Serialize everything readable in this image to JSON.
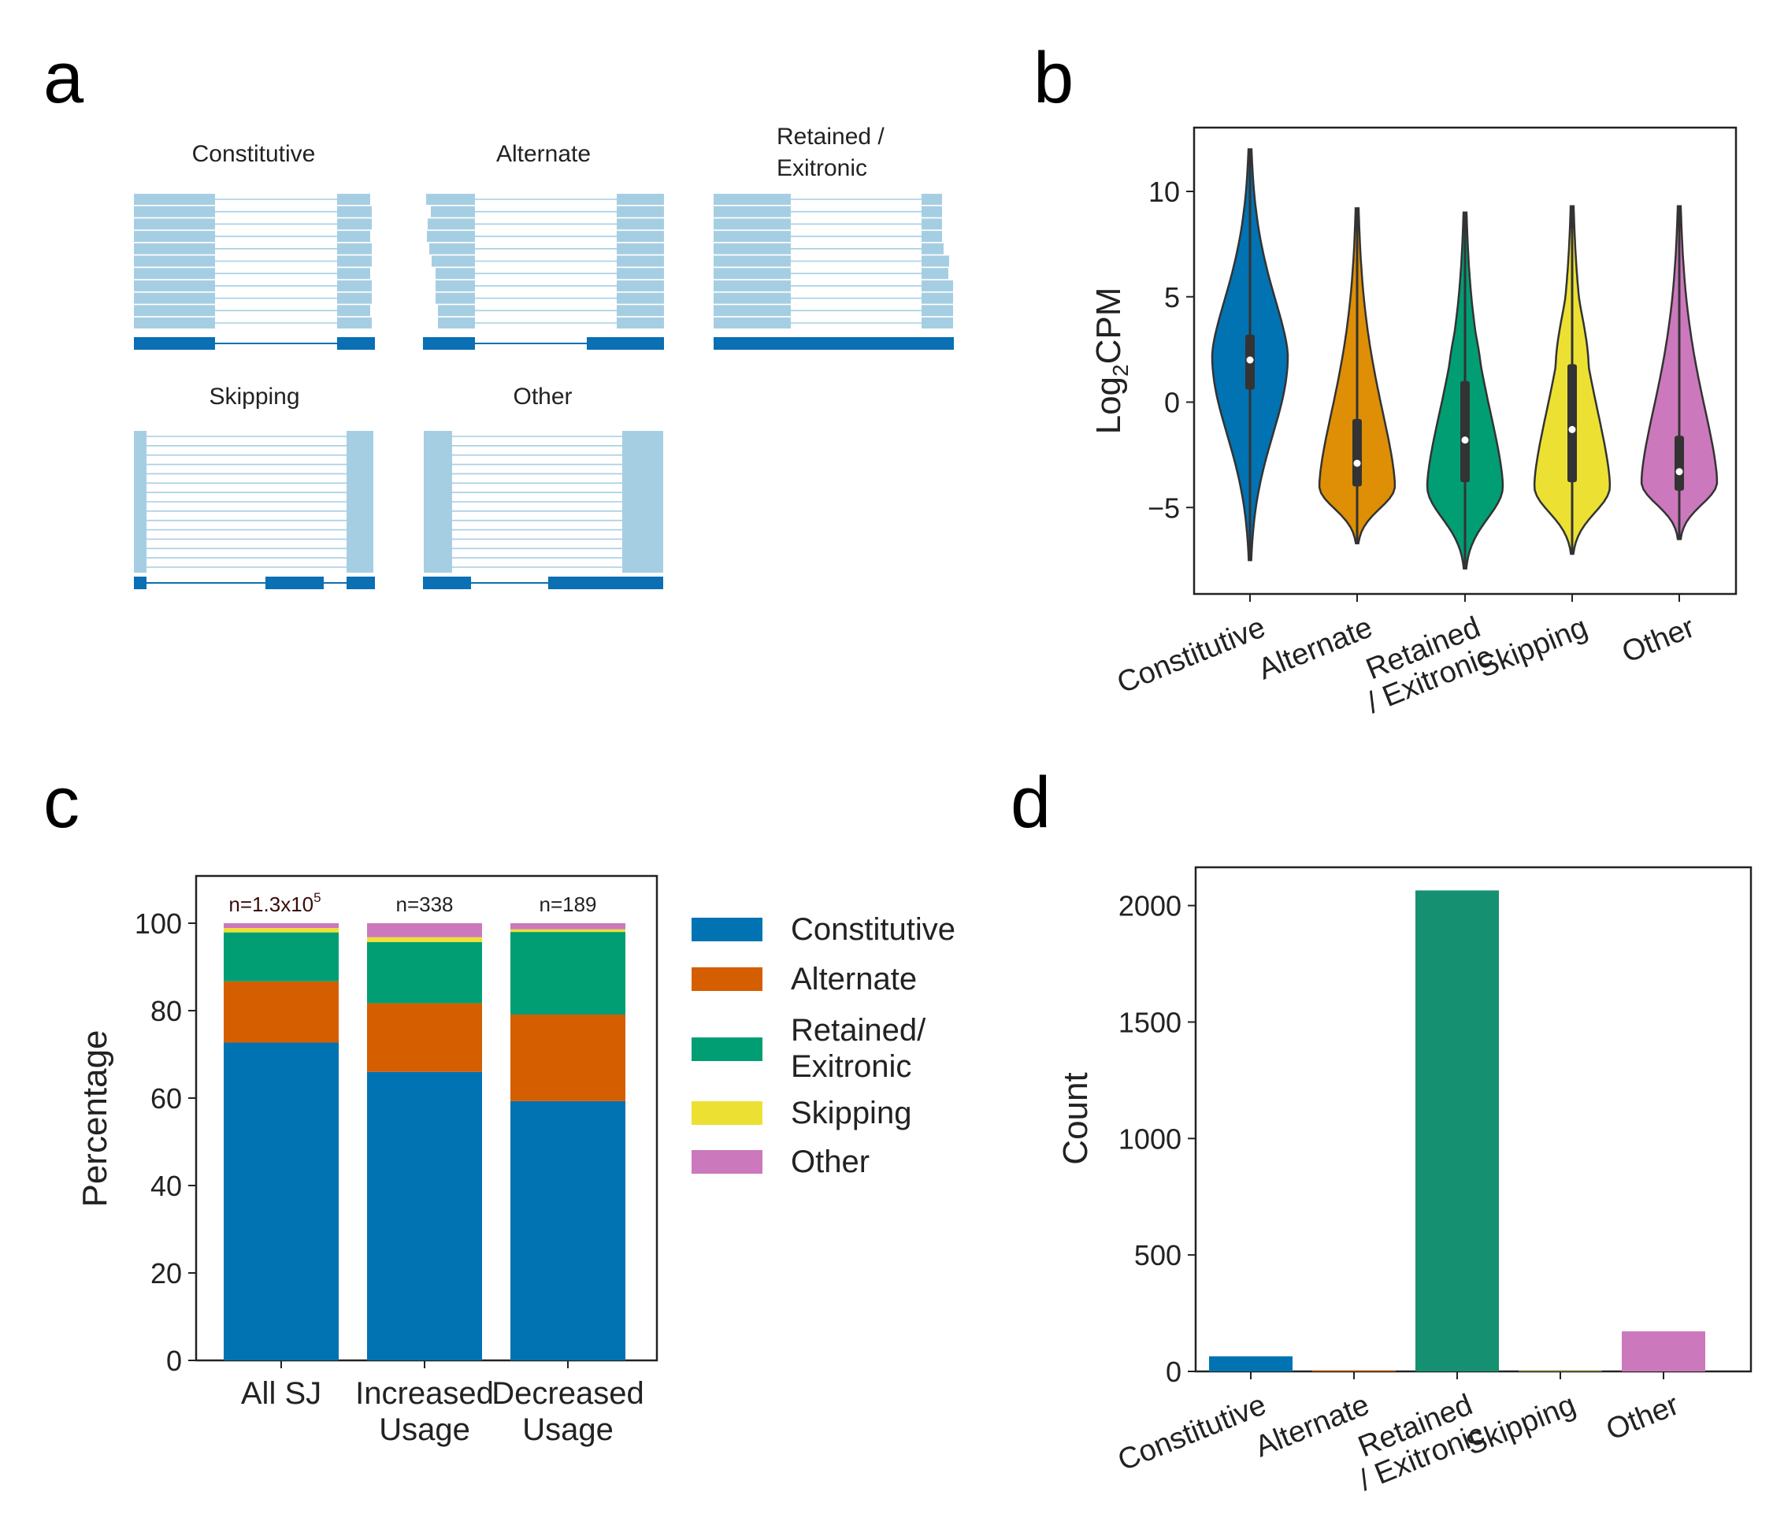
{
  "panel_labels": [
    "a",
    "b",
    "c",
    "d"
  ],
  "colors": {
    "constitutive": "#0173b2",
    "alternate": "#de8f05",
    "alternate_bar": "#d55e00",
    "retained": "#029e73",
    "retained_bar": "#159070",
    "skipping": "#ece133",
    "other": "#cc78bc",
    "read": "#a6cee3",
    "gene": "#0a6fb3"
  },
  "panel_a": {
    "titles": [
      "Constitutive",
      "Alternate",
      "Retained /\nExitronic",
      "Skipping",
      "Other"
    ]
  },
  "chart_data": [
    {
      "type": "violin",
      "panel": "b",
      "categories": [
        "Constitutive",
        "Alternate",
        "Retained\n/ Exitronic",
        "Skipping",
        "Other"
      ],
      "ylabel": "Log2CPM",
      "ylabel_main": "Log",
      "ylabel_sub": "2",
      "ylabel_tail": "CPM",
      "ylim": [
        -9,
        13
      ],
      "yticks": [
        -5,
        0,
        5,
        10
      ],
      "ytick_labels": [
        "−5",
        "0",
        "5",
        "10"
      ],
      "series": [
        {
          "min": -7.5,
          "max": 12,
          "q1": 0.6,
          "median": 2.0,
          "q3": 3.2,
          "mode": 2.2
        },
        {
          "min": -6.7,
          "max": 9.2,
          "q1": -4.0,
          "median": -2.9,
          "q3": -0.8,
          "mode": -4.0
        },
        {
          "min": -7.9,
          "max": 9.0,
          "q1": -3.8,
          "median": -1.8,
          "q3": 1.0,
          "mode": -4.0
        },
        {
          "min": -7.2,
          "max": 9.3,
          "q1": -3.8,
          "median": -1.3,
          "q3": 1.8,
          "mode": -4.0
        },
        {
          "min": -6.5,
          "max": 9.3,
          "q1": -4.2,
          "median": -3.3,
          "q3": -1.6,
          "mode": -3.8
        }
      ]
    },
    {
      "type": "bar",
      "stacked": true,
      "panel": "c",
      "categories": [
        "All SJ",
        "Increased\nUsage",
        "Decreased\nUsage"
      ],
      "ylabel": "Percentage",
      "ylim": [
        0,
        110
      ],
      "yticks": [
        0,
        20,
        40,
        60,
        80,
        100
      ],
      "annotations": [
        "n=1.3x10",
        "n=338",
        "n=189"
      ],
      "annotation_sup": "5",
      "series": [
        {
          "name": "Constitutive",
          "values": [
            72.7,
            66.0,
            59.3
          ]
        },
        {
          "name": "Alternate",
          "values": [
            14.0,
            15.7,
            19.8
          ]
        },
        {
          "name": "Retained/\nExitronic",
          "values": [
            11.2,
            14.0,
            18.9
          ]
        },
        {
          "name": "Skipping",
          "values": [
            1.0,
            1.1,
            0.6
          ]
        },
        {
          "name": "Other",
          "values": [
            1.1,
            3.2,
            1.4
          ]
        }
      ],
      "legend": [
        "Constitutive",
        "Alternate",
        "Retained/\nExitronic",
        "Skipping",
        "Other"
      ],
      "legend_position": "right"
    },
    {
      "type": "bar",
      "panel": "d",
      "categories": [
        "Constitutive",
        "Alternate",
        "Retained\n/ Exitronic",
        "Skipping",
        "Other"
      ],
      "values": [
        65,
        4,
        2065,
        2,
        172
      ],
      "ylabel": "Count",
      "ylim": [
        0,
        2200
      ],
      "yticks": [
        0,
        500,
        1000,
        1500,
        2000
      ]
    }
  ]
}
